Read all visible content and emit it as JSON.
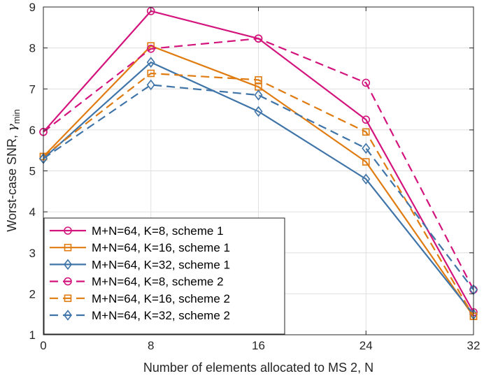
{
  "chart_data": {
    "type": "line",
    "x": [
      0,
      8,
      16,
      24,
      32
    ],
    "xlim": [
      0,
      32
    ],
    "ylim": [
      1,
      9
    ],
    "xticks": [
      0,
      8,
      16,
      24,
      32
    ],
    "yticks": [
      1,
      2,
      3,
      4,
      5,
      6,
      7,
      8,
      9
    ],
    "xlabel": "Number of elements allocated to MS 2, N",
    "ylabel_main": "Worst-case SNR, ",
    "ylabel_symbol": "γ",
    "ylabel_sub": "min",
    "grid": true,
    "legend_position": "bottom-left",
    "series": [
      {
        "name": "M+N=64, K=8, scheme 1",
        "color": "#d4147d",
        "dash": "solid",
        "marker": "circle",
        "values": [
          5.95,
          8.9,
          8.23,
          6.25,
          1.55
        ]
      },
      {
        "name": "M+N=64, K=16, scheme 1",
        "color": "#e07b10",
        "dash": "solid",
        "marker": "square",
        "values": [
          5.35,
          8.05,
          7.05,
          5.22,
          1.45
        ]
      },
      {
        "name": "M+N=64, K=32, scheme 1",
        "color": "#3f74a8",
        "dash": "solid",
        "marker": "diamond",
        "values": [
          5.3,
          7.65,
          6.45,
          4.8,
          1.5
        ]
      },
      {
        "name": "M+N=64, K=8, scheme 2",
        "color": "#d4147d",
        "dash": "dashed",
        "marker": "circle",
        "values": [
          5.95,
          7.98,
          8.23,
          7.15,
          2.1
        ]
      },
      {
        "name": "M+N=64, K=16, scheme 2",
        "color": "#e07b10",
        "dash": "dashed",
        "marker": "square",
        "values": [
          5.35,
          7.38,
          7.22,
          5.95,
          1.45
        ]
      },
      {
        "name": "M+N=64, K=32, scheme 2",
        "color": "#3f74a8",
        "dash": "dashed",
        "marker": "diamond",
        "values": [
          5.3,
          7.1,
          6.85,
          5.55,
          2.1
        ]
      }
    ]
  }
}
